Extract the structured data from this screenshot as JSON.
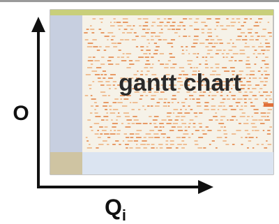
{
  "overlay_label": "gantt chart",
  "axes": {
    "vertical": "O",
    "horizontal": {
      "base": "Q",
      "subscript": "i"
    }
  }
}
